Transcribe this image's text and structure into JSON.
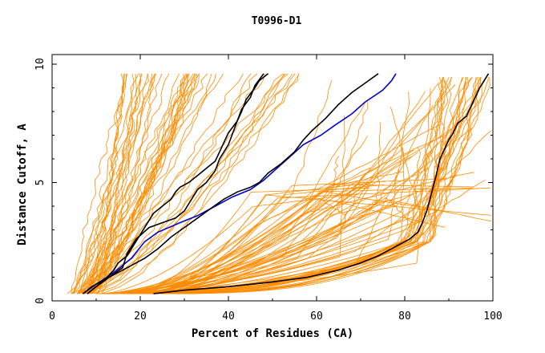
{
  "chart_data": {
    "type": "line",
    "title": "T0996-D1",
    "xlabel": "Percent of Residues (CA)",
    "ylabel": "Distance Cutoff, A",
    "xlim": [
      0,
      100
    ],
    "ylim": [
      0,
      10
    ],
    "x_ticks": [
      {
        "value": 0,
        "label": "0"
      },
      {
        "value": 20,
        "label": "20"
      },
      {
        "value": 40,
        "label": "40"
      },
      {
        "value": 60,
        "label": "60"
      },
      {
        "value": 80,
        "label": "80"
      },
      {
        "value": 100,
        "label": "100"
      }
    ],
    "y_ticks": [
      {
        "value": 0,
        "label": "0"
      },
      {
        "value": 5,
        "label": "5"
      },
      {
        "value": 10,
        "label": "10"
      }
    ],
    "grid": false,
    "colors": {
      "background_models": "#ff8c00",
      "highlight_black": "#000000",
      "highlight_blue": "#0000cd"
    },
    "series": [
      {
        "color": "#0000cd",
        "points": [
          [
            7,
            0.3
          ],
          [
            10,
            0.7
          ],
          [
            14,
            1.2
          ],
          [
            18,
            1.8
          ],
          [
            21,
            2.5
          ],
          [
            24,
            2.9
          ],
          [
            29,
            3.3
          ],
          [
            33,
            3.6
          ],
          [
            37,
            4.0
          ],
          [
            41,
            4.4
          ],
          [
            45,
            4.7
          ],
          [
            48,
            5.1
          ],
          [
            51,
            5.6
          ],
          [
            54,
            6.1
          ],
          [
            57,
            6.6
          ],
          [
            61,
            7.0
          ],
          [
            64,
            7.4
          ],
          [
            68,
            7.9
          ],
          [
            71,
            8.4
          ],
          [
            75,
            8.9
          ],
          [
            77,
            9.3
          ],
          [
            78,
            9.6
          ]
        ]
      },
      {
        "color": "#000000",
        "points": [
          [
            7,
            0.3
          ],
          [
            9,
            0.6
          ],
          [
            12,
            0.9
          ],
          [
            15,
            1.2
          ],
          [
            18,
            1.5
          ],
          [
            21,
            1.8
          ],
          [
            24,
            2.2
          ],
          [
            27,
            2.7
          ],
          [
            30,
            3.1
          ],
          [
            33,
            3.5
          ],
          [
            36,
            3.9
          ],
          [
            39,
            4.3
          ],
          [
            42,
            4.6
          ],
          [
            45,
            4.8
          ],
          [
            47,
            5.0
          ],
          [
            49,
            5.4
          ],
          [
            52,
            5.8
          ],
          [
            55,
            6.3
          ],
          [
            57,
            6.8
          ],
          [
            59,
            7.2
          ],
          [
            62,
            7.7
          ],
          [
            65,
            8.3
          ],
          [
            68,
            8.8
          ],
          [
            71,
            9.2
          ],
          [
            74,
            9.6
          ]
        ]
      },
      {
        "color": "#000000",
        "points": [
          [
            8,
            0.3
          ],
          [
            10,
            0.6
          ],
          [
            13,
            1.0
          ],
          [
            16,
            1.4
          ],
          [
            17,
            2.0
          ],
          [
            19,
            2.6
          ],
          [
            22,
            3.1
          ],
          [
            25,
            3.3
          ],
          [
            28,
            3.5
          ],
          [
            30,
            3.8
          ],
          [
            31,
            4.1
          ],
          [
            32,
            4.4
          ],
          [
            33,
            4.7
          ],
          [
            35,
            5.0
          ],
          [
            37,
            5.5
          ],
          [
            38,
            6.0
          ],
          [
            40,
            6.6
          ],
          [
            41,
            7.1
          ],
          [
            42,
            7.6
          ],
          [
            43,
            8.1
          ],
          [
            45,
            8.6
          ],
          [
            46,
            9.1
          ],
          [
            48,
            9.6
          ]
        ]
      },
      {
        "color": "#000000",
        "points": [
          [
            8,
            0.3
          ],
          [
            10,
            0.6
          ],
          [
            12,
            0.9
          ],
          [
            14,
            1.3
          ],
          [
            15,
            1.6
          ],
          [
            17,
            1.9
          ],
          [
            18,
            2.2
          ],
          [
            19,
            2.5
          ],
          [
            20,
            2.8
          ],
          [
            21,
            3.1
          ],
          [
            22,
            3.4
          ],
          [
            23,
            3.7
          ],
          [
            25,
            4.0
          ],
          [
            27,
            4.3
          ],
          [
            28,
            4.6
          ],
          [
            29,
            4.8
          ],
          [
            31,
            5.0
          ],
          [
            33,
            5.3
          ],
          [
            35,
            5.6
          ],
          [
            37,
            5.9
          ],
          [
            38,
            6.3
          ],
          [
            39,
            6.7
          ],
          [
            40,
            7.1
          ],
          [
            42,
            7.6
          ],
          [
            43,
            8.0
          ],
          [
            44,
            8.5
          ],
          [
            46,
            9.0
          ],
          [
            47,
            9.3
          ],
          [
            49,
            9.6
          ]
        ]
      },
      {
        "color": "#000000",
        "points": [
          [
            23,
            0.3
          ],
          [
            30,
            0.45
          ],
          [
            40,
            0.6
          ],
          [
            50,
            0.8
          ],
          [
            58,
            1.0
          ],
          [
            65,
            1.3
          ],
          [
            70,
            1.6
          ],
          [
            74,
            1.9
          ],
          [
            78,
            2.3
          ],
          [
            81,
            2.6
          ],
          [
            83,
            2.9
          ],
          [
            84,
            3.3
          ],
          [
            85,
            3.8
          ],
          [
            86,
            4.5
          ],
          [
            87,
            5.2
          ],
          [
            88,
            6.0
          ],
          [
            89,
            6.4
          ],
          [
            90,
            6.8
          ],
          [
            91,
            7.1
          ],
          [
            92,
            7.5
          ],
          [
            94,
            7.8
          ],
          [
            95,
            8.2
          ],
          [
            96,
            8.6
          ],
          [
            97,
            9.0
          ],
          [
            98,
            9.3
          ],
          [
            99,
            9.6
          ]
        ]
      }
    ]
  }
}
